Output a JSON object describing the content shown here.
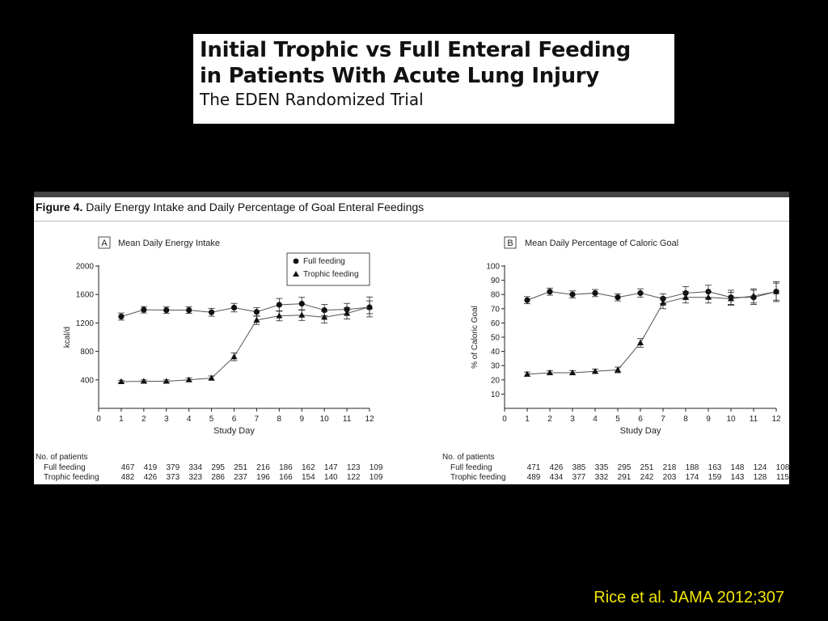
{
  "slide_title": {
    "line1": "Initial Trophic vs Full Enteral Feeding",
    "line2": "in Patients With Acute Lung Injury",
    "subtitle": "The EDEN Randomized Trial"
  },
  "figure_caption": {
    "label": "Figure 4.",
    "text": "Daily Energy Intake and Daily Percentage of Goal Enteral Feedings"
  },
  "citation": "Rice et al. JAMA 2012;307",
  "colors": {
    "background": "#000000",
    "citation": "#f2e600",
    "ink": "#222222"
  },
  "chart_data": [
    {
      "type": "line",
      "panel_letter": "A",
      "title": "Mean Daily Energy Intake",
      "xlabel": "Study Day",
      "ylabel": "kcal/d",
      "x": [
        1,
        2,
        3,
        4,
        5,
        6,
        7,
        8,
        9,
        10,
        11,
        12
      ],
      "x_ticks": [
        0,
        1,
        2,
        3,
        4,
        5,
        6,
        7,
        8,
        9,
        10,
        11,
        12
      ],
      "y_ticks": [
        400,
        800,
        1200,
        1600,
        2000
      ],
      "xlim": [
        0,
        12
      ],
      "ylim": [
        0,
        2000
      ],
      "legend": "top-right",
      "grid": false,
      "series": [
        {
          "name": "Full feeding",
          "marker": "circle",
          "values": [
            1290,
            1385,
            1380,
            1380,
            1350,
            1415,
            1355,
            1455,
            1470,
            1380,
            1390,
            1420
          ],
          "error": [
            50,
            45,
            45,
            45,
            55,
            60,
            60,
            90,
            90,
            80,
            85,
            90
          ]
        },
        {
          "name": "Trophic feeding",
          "marker": "triangle",
          "values": [
            375,
            380,
            380,
            400,
            425,
            725,
            1240,
            1300,
            1310,
            1280,
            1335,
            1425
          ],
          "error": [
            20,
            20,
            20,
            25,
            30,
            55,
            60,
            70,
            75,
            80,
            80,
            140
          ]
        }
      ],
      "patients": {
        "heading": "No. of patients",
        "rows": [
          {
            "label": "Full feeding",
            "counts": [
              "467",
              "419",
              "379",
              "334",
              "295",
              "251",
              "216",
              "186",
              "162",
              "147",
              "123",
              "109"
            ]
          },
          {
            "label": "Trophic feeding",
            "counts": [
              "482",
              "426",
              "373",
              "323",
              "286",
              "237",
              "196",
              "166",
              "154",
              "140",
              "122",
              "109"
            ]
          }
        ]
      }
    },
    {
      "type": "line",
      "panel_letter": "B",
      "title": "Mean Daily Percentage of Caloric Goal",
      "xlabel": "Study Day",
      "ylabel": "% of Caloric Goal",
      "x": [
        1,
        2,
        3,
        4,
        5,
        6,
        7,
        8,
        9,
        10,
        11,
        12
      ],
      "x_ticks": [
        0,
        1,
        2,
        3,
        4,
        5,
        6,
        7,
        8,
        9,
        10,
        11,
        12
      ],
      "y_ticks": [
        10,
        20,
        30,
        40,
        50,
        60,
        70,
        80,
        90,
        100
      ],
      "xlim": [
        0,
        12
      ],
      "ylim": [
        0,
        100
      ],
      "grid": false,
      "series": [
        {
          "name": "Full feeding",
          "marker": "circle",
          "values": [
            76,
            82,
            80,
            81,
            78,
            81,
            77,
            81,
            82,
            78,
            78,
            82
          ],
          "error": [
            2.5,
            2.5,
            2.5,
            2.5,
            2.5,
            3,
            3.5,
            4.5,
            4.5,
            5,
            5,
            7
          ]
        },
        {
          "name": "Trophic feeding",
          "marker": "triangle",
          "values": [
            24,
            25,
            25,
            26,
            27,
            46,
            74,
            78,
            78,
            77,
            79,
            82
          ],
          "error": [
            1.5,
            1.5,
            1.5,
            1.5,
            2,
            3,
            4,
            4,
            4,
            4.5,
            5,
            6
          ]
        }
      ],
      "patients": {
        "heading": "No. of patients",
        "rows": [
          {
            "label": "Full feeding",
            "counts": [
              "471",
              "426",
              "385",
              "335",
              "295",
              "251",
              "218",
              "188",
              "163",
              "148",
              "124",
              "108"
            ]
          },
          {
            "label": "Trophic feeding",
            "counts": [
              "489",
              "434",
              "377",
              "332",
              "291",
              "242",
              "203",
              "174",
              "159",
              "143",
              "128",
              "115"
            ]
          }
        ]
      }
    }
  ]
}
